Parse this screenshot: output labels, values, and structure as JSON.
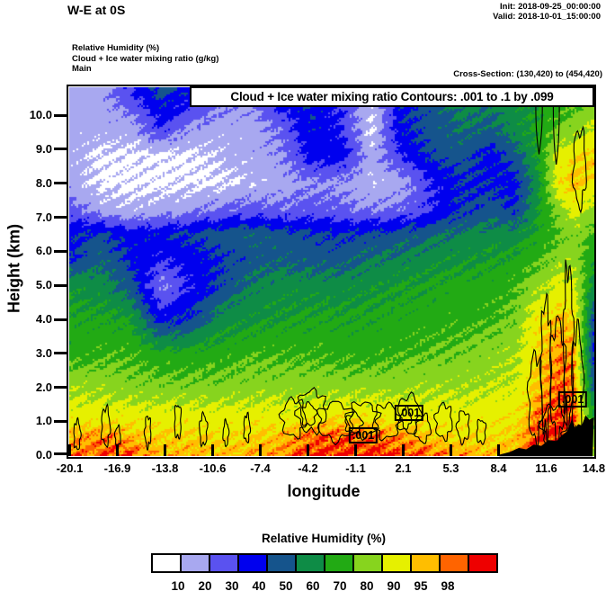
{
  "header": {
    "title": "W-E at 0S",
    "init_label": "Init: 2018-09-25_00:00:00",
    "valid_label": "Valid: 2018-10-01_15:00:00",
    "field_line_1": "Relative Humidity  (%)",
    "field_line_2": "Cloud + Ice water mixing ratio  (g/kg)",
    "field_line_3": "Main",
    "cross_section": "Cross-Section: (130,420) to (454,420)"
  },
  "plot": {
    "box_title": "Cloud + Ice water mixing ratio Contours: .001 to .1 by .099",
    "xlabel": "longitude",
    "ylabel": "Height (km)"
  },
  "colorbar": {
    "title": "Relative Humidity  (%)",
    "tick_labels": [
      "10",
      "20",
      "30",
      "40",
      "50",
      "60",
      "70",
      "80",
      "90",
      "95",
      "98"
    ],
    "colors": [
      "#ffffff",
      "#a8a8f0",
      "#5a52f0",
      "#0000ee",
      "#15548c",
      "#0e8c46",
      "#22aa14",
      "#87d41e",
      "#e6f000",
      "#ffbe00",
      "#ff6400",
      "#ee0000"
    ]
  },
  "chart_data": {
    "type": "heatmap",
    "subtype": "filled-contour-vertical-cross-section",
    "title": "Cloud + Ice water mixing ratio Contours: .001 to .1 by .099",
    "shaded_field": "Relative Humidity (%)",
    "contoured_field": "Cloud + Ice water mixing ratio (g/kg)",
    "xlabel": "longitude",
    "ylabel": "Height (km)",
    "xlim": [
      -20.1,
      14.8
    ],
    "ylim": [
      0,
      10.82
    ],
    "xticks": [
      "-20.1",
      "-16.9",
      "-13.8",
      "-10.6",
      "-7.4",
      "-4.2",
      "-1.1",
      "2.1",
      "5.3",
      "8.4",
      "11.6",
      "14.8"
    ],
    "yticks": [
      "10.0",
      "9.0",
      "8.0",
      "7.0",
      "6.0",
      "5.0",
      "4.0",
      "3.0",
      "2.0",
      "1.0",
      "0.0"
    ],
    "rh_levels": [
      10,
      20,
      30,
      40,
      50,
      60,
      70,
      80,
      90,
      95,
      98
    ],
    "rh_colors": [
      "#ffffff",
      "#a8a8f0",
      "#5a52f0",
      "#0000ee",
      "#15548c",
      "#0e8c46",
      "#22aa14",
      "#87d41e",
      "#e6f000",
      "#ffbe00",
      "#ff6400",
      "#ee0000"
    ],
    "grid": {
      "lons": [
        -20.1,
        -18,
        -16,
        -14,
        -12,
        -10,
        -8,
        -6,
        -4,
        -2,
        0,
        2,
        4,
        6,
        8,
        9.5,
        11,
        12.5,
        13.5,
        14.8
      ],
      "heights_km": [
        0,
        0.6,
        1.2,
        2,
        3,
        4,
        5,
        5.8,
        6.5,
        7.2,
        8,
        8.8,
        9.6,
        10.8
      ],
      "rh_percent": [
        [
          96,
          97,
          98,
          92,
          93,
          92,
          93,
          95,
          99,
          99,
          99,
          98,
          96,
          95,
          93,
          94,
          99,
          99,
          99,
          75
        ],
        [
          92,
          95,
          92,
          90,
          90,
          88,
          90,
          92,
          96,
          97,
          96,
          94,
          90,
          89,
          88,
          90,
          98,
          99,
          99,
          78
        ],
        [
          85,
          85,
          85,
          85,
          85,
          84,
          85,
          85,
          86,
          88,
          87,
          86,
          85,
          85,
          86,
          87,
          96,
          98,
          98,
          60
        ],
        [
          78,
          77,
          74,
          73,
          73,
          74,
          75,
          76,
          76,
          76,
          76,
          77,
          78,
          78,
          80,
          82,
          92,
          97,
          96,
          45
        ],
        [
          65,
          68,
          68,
          63,
          64,
          65,
          68,
          68,
          68,
          66,
          66,
          68,
          70,
          72,
          75,
          78,
          90,
          95,
          94,
          38
        ],
        [
          62,
          62,
          60,
          35,
          42,
          55,
          58,
          60,
          62,
          62,
          62,
          64,
          66,
          66,
          68,
          72,
          88,
          92,
          90,
          42
        ],
        [
          58,
          55,
          45,
          18,
          32,
          42,
          52,
          55,
          55,
          55,
          58,
          60,
          62,
          64,
          65,
          68,
          75,
          85,
          82,
          55
        ],
        [
          38,
          48,
          38,
          32,
          35,
          40,
          45,
          48,
          45,
          45,
          50,
          52,
          55,
          58,
          60,
          62,
          68,
          75,
          76,
          62
        ],
        [
          38,
          42,
          35,
          38,
          42,
          45,
          48,
          45,
          42,
          40,
          42,
          45,
          48,
          52,
          55,
          55,
          62,
          70,
          74,
          68
        ],
        [
          25,
          15,
          12,
          15,
          18,
          22,
          25,
          22,
          25,
          22,
          20,
          22,
          30,
          40,
          45,
          40,
          58,
          75,
          85,
          75
        ],
        [
          15,
          8,
          8,
          8,
          8,
          8,
          12,
          15,
          18,
          18,
          12,
          15,
          30,
          40,
          38,
          36,
          55,
          88,
          93,
          88
        ],
        [
          15,
          8,
          8,
          8,
          8,
          12,
          15,
          18,
          35,
          35,
          15,
          30,
          42,
          45,
          35,
          45,
          60,
          85,
          88,
          92
        ],
        [
          15,
          15,
          15,
          30,
          18,
          15,
          15,
          22,
          38,
          30,
          8,
          38,
          45,
          50,
          48,
          55,
          62,
          72,
          75,
          82
        ],
        [
          15,
          15,
          30,
          45,
          38,
          25,
          18,
          42,
          40,
          30,
          12,
          40,
          42,
          55,
          52,
          58,
          58,
          62,
          65,
          66
        ]
      ]
    },
    "cloud_contours": {
      "contour_levels_gkg": [
        0.001,
        0.1
      ],
      "labels": [
        {
          "lon": 2.5,
          "h": 1.25,
          "text": ".001"
        },
        {
          "lon": -0.55,
          "h": 0.6,
          "text": ".001"
        },
        {
          "lon": 13.4,
          "h": 1.65,
          "text": ".001"
        }
      ],
      "blobs": [
        [
          -19.6,
          0.6,
          0.22,
          0.42,
          5,
          1
        ],
        [
          -17.7,
          0.85,
          0.28,
          0.55,
          5,
          2
        ],
        [
          -16.9,
          0.55,
          0.18,
          0.3,
          4,
          3
        ],
        [
          -14.9,
          0.7,
          0.2,
          0.45,
          5,
          4
        ],
        [
          -12.9,
          1.0,
          0.22,
          0.5,
          4,
          5
        ],
        [
          -11.2,
          0.75,
          0.25,
          0.45,
          5,
          6
        ],
        [
          -9.7,
          0.65,
          0.18,
          0.35,
          4,
          7
        ],
        [
          -8.3,
          0.8,
          0.2,
          0.4,
          5,
          8
        ],
        [
          -5.2,
          1.1,
          0.8,
          0.55,
          6,
          9
        ],
        [
          -4.0,
          1.3,
          0.95,
          0.6,
          7,
          10
        ],
        [
          -2.4,
          1.0,
          1.15,
          0.55,
          6,
          11
        ],
        [
          -0.6,
          1.05,
          1.05,
          0.5,
          7,
          12
        ],
        [
          1.0,
          1.0,
          0.85,
          0.5,
          6,
          13
        ],
        [
          2.5,
          1.2,
          0.75,
          0.55,
          5,
          14
        ],
        [
          3.4,
          0.8,
          0.5,
          0.4,
          5,
          15
        ],
        [
          4.8,
          1.0,
          0.55,
          0.5,
          6,
          16
        ],
        [
          6.1,
          0.85,
          0.4,
          0.45,
          5,
          17
        ],
        [
          7.3,
          0.7,
          0.3,
          0.35,
          4,
          18
        ],
        [
          -4.2,
          1.2,
          0.5,
          0.32,
          5,
          19
        ],
        [
          -1.2,
          0.95,
          0.55,
          0.28,
          5,
          20
        ],
        [
          2.3,
          1.1,
          0.32,
          0.3,
          4,
          21
        ],
        [
          10.9,
          1.7,
          0.45,
          1.25,
          6,
          22
        ],
        [
          11.6,
          2.6,
          0.33,
          1.95,
          7,
          23
        ],
        [
          12.4,
          2.2,
          0.5,
          1.75,
          6,
          24
        ],
        [
          13.1,
          3.2,
          0.33,
          2.3,
          7,
          25
        ],
        [
          13.7,
          2.1,
          0.38,
          1.6,
          5,
          26
        ],
        [
          12.1,
          0.9,
          0.8,
          0.55,
          6,
          27
        ],
        [
          13.85,
          8.45,
          0.42,
          1.1,
          5,
          28
        ]
      ],
      "u_curves": [
        {
          "lon": 11.15,
          "half_width": 0.22,
          "h_bottom": 8.85
        },
        {
          "lon": 12.3,
          "half_width": 0.2,
          "h_bottom": 8.55
        }
      ]
    },
    "terrain_profile_lon_km": [
      [
        8.5,
        0.02
      ],
      [
        9.2,
        0.1
      ],
      [
        9.8,
        0.22
      ],
      [
        10.3,
        0.18
      ],
      [
        10.8,
        0.32
      ],
      [
        11.3,
        0.28
      ],
      [
        11.8,
        0.45
      ],
      [
        12.3,
        0.42
      ],
      [
        12.7,
        0.6
      ],
      [
        13.05,
        0.72
      ],
      [
        13.35,
        1.1
      ],
      [
        13.55,
        0.78
      ],
      [
        13.75,
        0.92
      ],
      [
        14.0,
        0.88
      ],
      [
        14.25,
        1.18
      ],
      [
        14.5,
        1.05
      ],
      [
        14.8,
        1.12
      ]
    ]
  }
}
